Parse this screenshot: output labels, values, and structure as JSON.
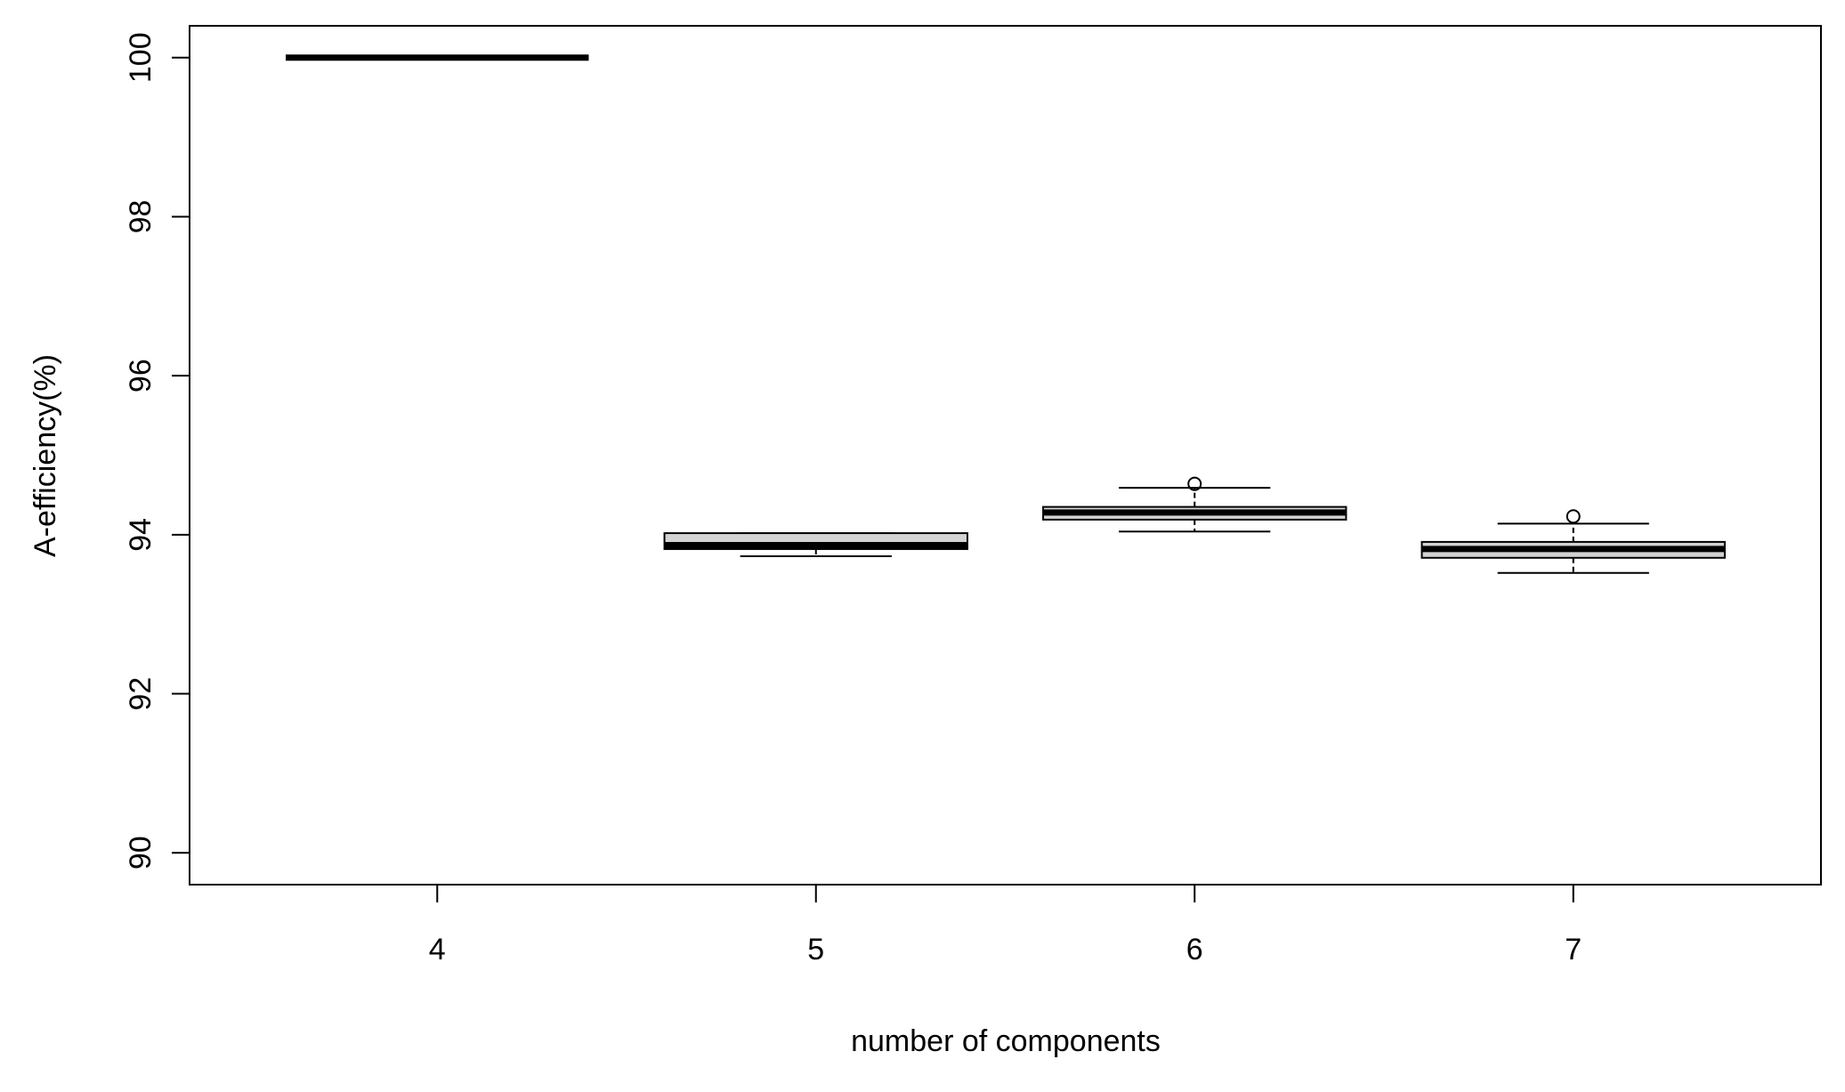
{
  "chart_data": {
    "type": "boxplot",
    "x_label": "number of components",
    "y_label": "A-efficiency(%)",
    "categories": [
      "4",
      "5",
      "6",
      "7"
    ],
    "boxes": [
      {
        "min": 100,
        "q1": 100,
        "median": 100,
        "q3": 100,
        "max": 100,
        "outliers": []
      },
      {
        "min": 93.73,
        "q1": 93.82,
        "median": 93.87,
        "q3": 94.02,
        "max": 94.02,
        "outliers": []
      },
      {
        "min": 94.04,
        "q1": 94.19,
        "median": 94.28,
        "q3": 94.35,
        "max": 94.59,
        "outliers": [
          94.64
        ]
      },
      {
        "min": 93.52,
        "q1": 93.71,
        "median": 93.82,
        "q3": 93.91,
        "max": 94.14,
        "outliers": [
          94.23
        ]
      }
    ],
    "color": "#d3d3d3",
    "ylim": [
      89.6,
      100.4
    ],
    "yticks": [
      90,
      92,
      94,
      96,
      98,
      100
    ]
  }
}
